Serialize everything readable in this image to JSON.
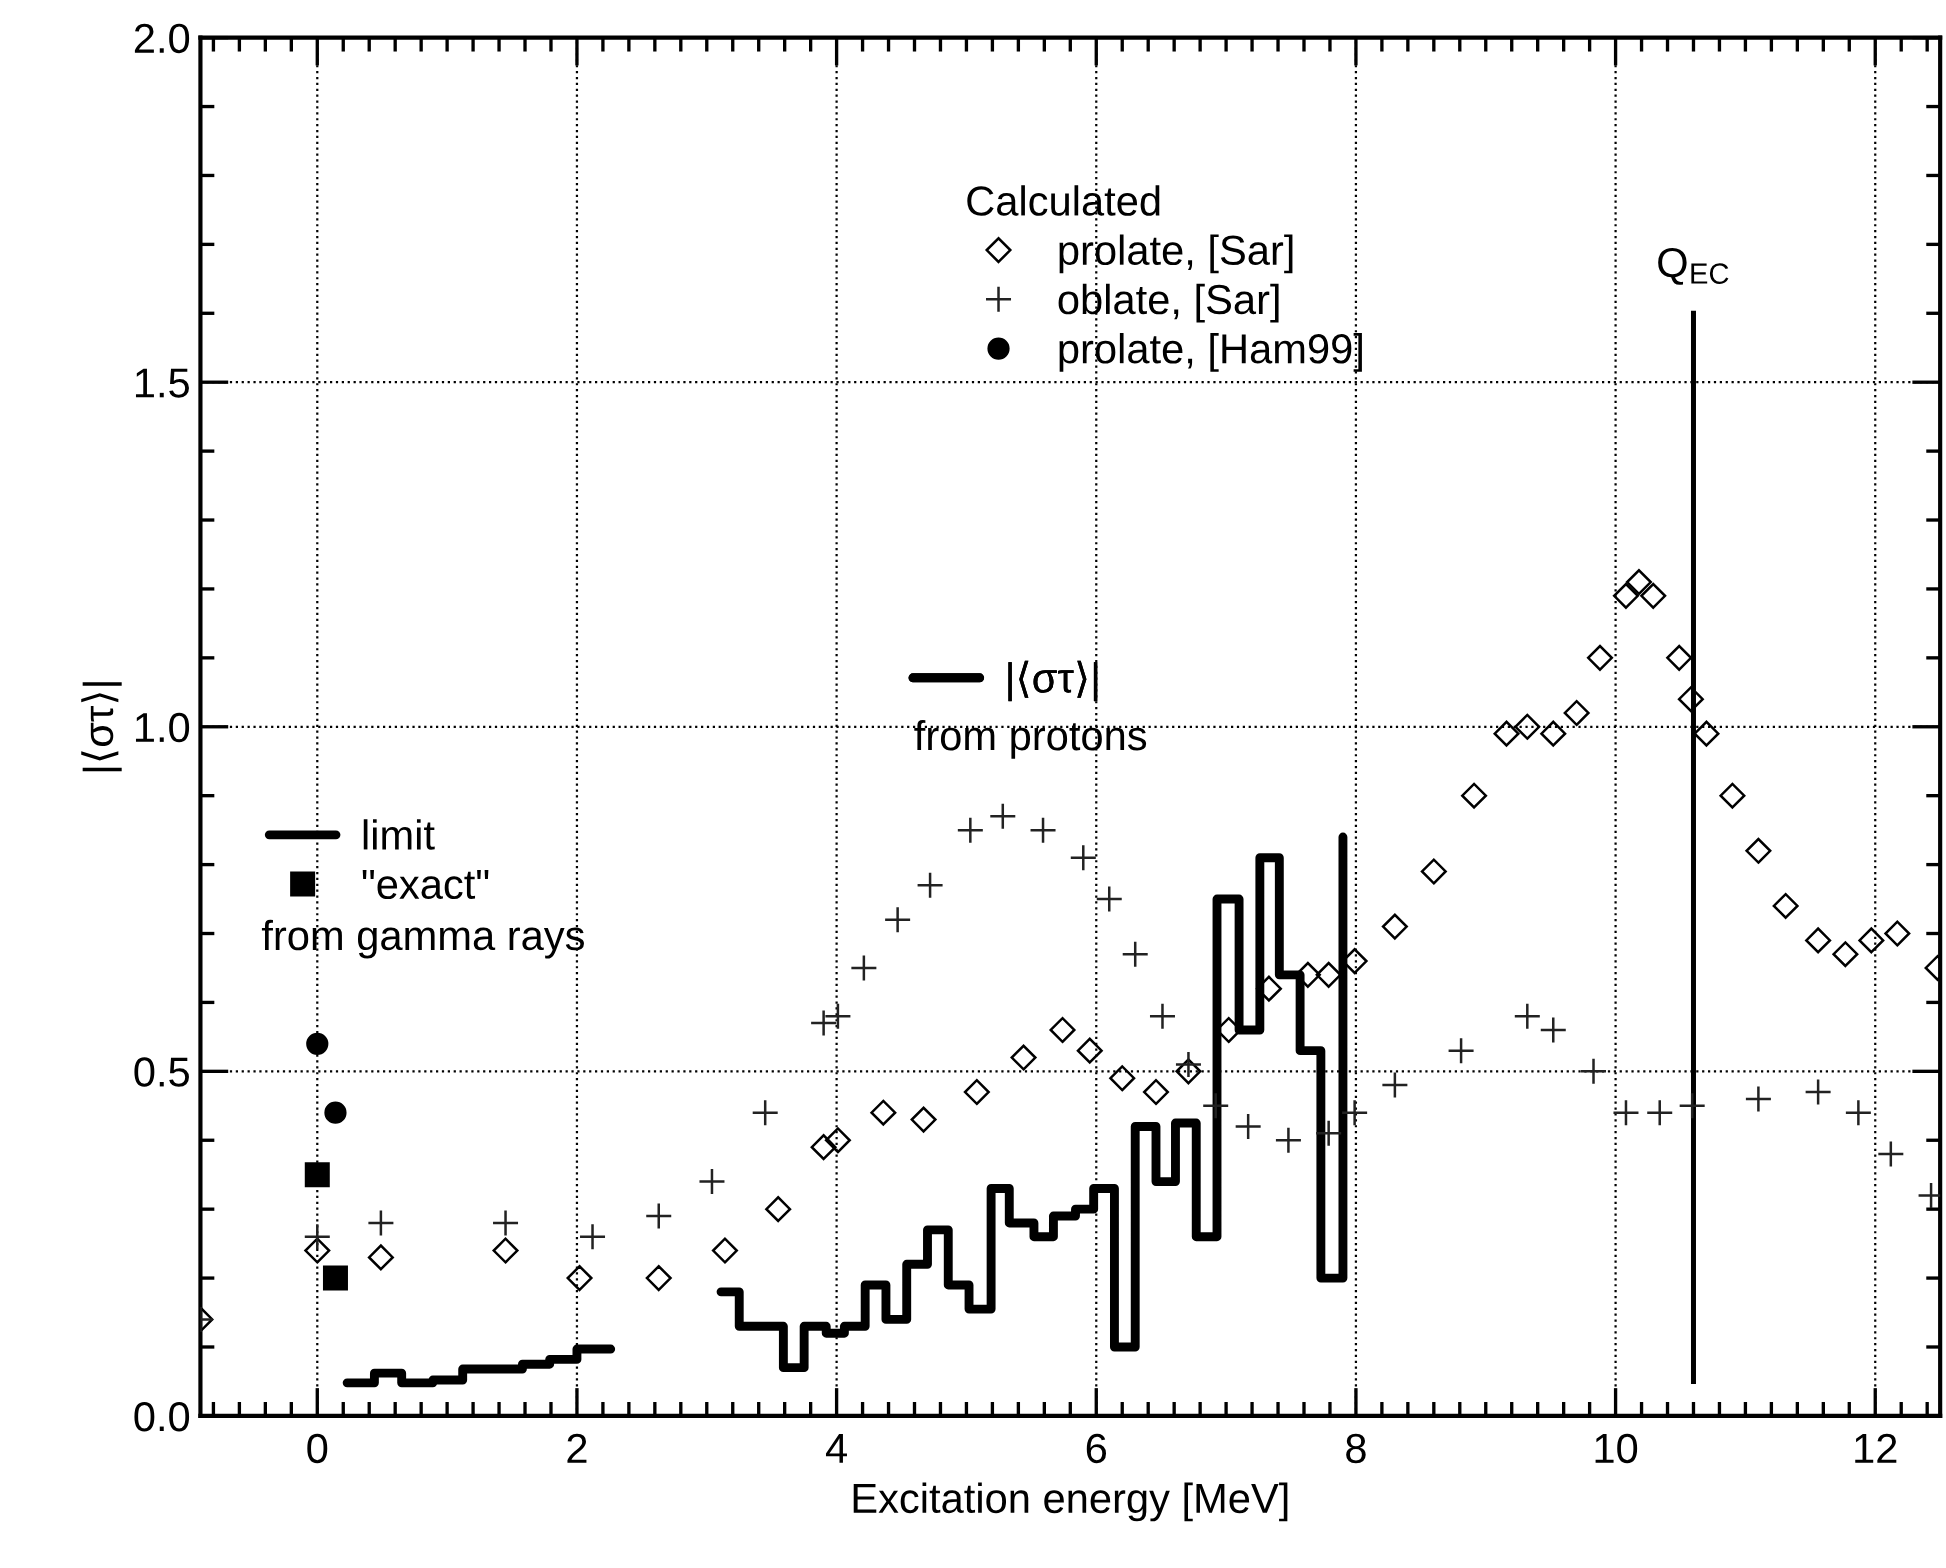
{
  "chart_data": {
    "type": "scatter",
    "xlabel": "Excitation energy [MeV]",
    "ylabel": "|⟨στ⟩|",
    "legend_title": "Calculated",
    "xlim": [
      -0.9,
      12.5
    ],
    "ylim": [
      0,
      2.0
    ],
    "xticks": [
      0,
      2,
      4,
      6,
      8,
      10,
      12
    ],
    "yticks": [
      {
        "value": 0,
        "label": "0.0"
      },
      {
        "value": 0.5,
        "label": "0.5"
      },
      {
        "value": 1.0,
        "label": "1.0"
      },
      {
        "value": 1.5,
        "label": "1.5"
      },
      {
        "value": 2.0,
        "label": "2.0"
      }
    ],
    "grid": true,
    "legend": "top",
    "annotations": [
      "from gamma rays",
      "from protons"
    ],
    "ref_lines": [
      {
        "axis": "x",
        "value": 10.6,
        "label": "Q$_{EC}$",
        "color": "#000000"
      }
    ],
    "series": [
      {
        "name": "prolate, [Sar]",
        "marker": "diamond",
        "color": "#000000",
        "x": [
          -0.9,
          0,
          0.49,
          1.45,
          2.02,
          2.63,
          3.14,
          3.55,
          3.9,
          4.01,
          4.36,
          4.67,
          5.08,
          5.44,
          5.74,
          5.95,
          6.2,
          6.46,
          6.71,
          7.02,
          7.33,
          7.63,
          7.79,
          7.99,
          8.3,
          8.6,
          8.91,
          9.16,
          9.32,
          9.52,
          9.7,
          9.88,
          10.08,
          10.18,
          10.29,
          10.49,
          10.58,
          10.7,
          10.9,
          11.1,
          11.31,
          11.56,
          11.77,
          11.97,
          12.17,
          12.48
        ],
        "values": [
          0.14,
          0.24,
          0.23,
          0.24,
          0.2,
          0.2,
          0.24,
          0.3,
          0.39,
          0.4,
          0.44,
          0.43,
          0.47,
          0.52,
          0.56,
          0.53,
          0.49,
          0.47,
          0.5,
          0.56,
          0.62,
          0.64,
          0.64,
          0.66,
          0.71,
          0.79,
          0.9,
          0.99,
          1.0,
          0.99,
          1.02,
          1.1,
          1.19,
          1.21,
          1.19,
          1.1,
          1.04,
          0.99,
          0.9,
          0.82,
          0.74,
          0.69,
          0.67,
          0.69,
          0.7,
          0.65
        ]
      },
      {
        "name": "oblate, [Sar]",
        "marker": "cross",
        "color": "#222222",
        "x": [
          -0.9,
          0,
          0.49,
          1.45,
          2.12,
          2.63,
          3.04,
          3.45,
          3.9,
          4.01,
          4.21,
          4.47,
          4.72,
          5.03,
          5.28,
          5.59,
          5.9,
          6.1,
          6.3,
          6.51,
          6.71,
          6.92,
          7.17,
          7.48,
          7.79,
          7.99,
          8.3,
          8.81,
          9.32,
          9.52,
          9.83,
          10.08,
          10.34,
          10.59,
          11.1,
          11.56,
          11.87,
          12.12,
          12.43
        ],
        "values": [
          0.14,
          0.26,
          0.28,
          0.28,
          0.26,
          0.29,
          0.34,
          0.44,
          0.57,
          0.58,
          0.65,
          0.72,
          0.77,
          0.85,
          0.87,
          0.85,
          0.81,
          0.75,
          0.67,
          0.58,
          0.51,
          0.45,
          0.42,
          0.4,
          0.41,
          0.44,
          0.48,
          0.53,
          0.58,
          0.56,
          0.5,
          0.44,
          0.44,
          0.45,
          0.46,
          0.47,
          0.44,
          0.38,
          0.32
        ]
      },
      {
        "name": "prolate, [Ham99]",
        "marker": "circle",
        "color": "#000000",
        "x": [
          0,
          0.14
        ],
        "values": [
          0.54,
          0.44
        ]
      },
      {
        "name": "limit",
        "type": "step",
        "color": "#000000",
        "x": [
          0.23,
          0.44,
          0.65,
          0.89,
          1.12,
          1.58,
          1.79,
          2.0,
          2.26
        ],
        "values": [
          0.048,
          0.062,
          0.048,
          0.052,
          0.068,
          0.075,
          0.082,
          0.097,
          0.097
        ]
      },
      {
        "name": "\"exact\"",
        "marker": "square",
        "color": "#000000",
        "x": [
          0,
          0.14
        ],
        "values": [
          0.35,
          0.2
        ]
      },
      {
        "name": "|⟨στ⟩|",
        "type": "step",
        "color": "#000000",
        "x": [
          3.11,
          3.25,
          3.59,
          3.75,
          3.92,
          4.06,
          4.22,
          4.38,
          4.54,
          4.7,
          4.86,
          5.02,
          5.19,
          5.33,
          5.52,
          5.67,
          5.84,
          5.98,
          6.14,
          6.3,
          6.46,
          6.61,
          6.77,
          6.93,
          7.1,
          7.26,
          7.41,
          7.57,
          7.73,
          7.9
        ],
        "values": [
          0.18,
          0.13,
          0.07,
          0.13,
          0.12,
          0.13,
          0.19,
          0.14,
          0.22,
          0.27,
          0.19,
          0.155,
          0.33,
          0.28,
          0.26,
          0.29,
          0.3,
          0.33,
          0.1,
          0.42,
          0.34,
          0.425,
          0.26,
          0.75,
          0.56,
          0.81,
          0.64,
          0.53,
          0.2,
          0.84
        ]
      }
    ]
  }
}
